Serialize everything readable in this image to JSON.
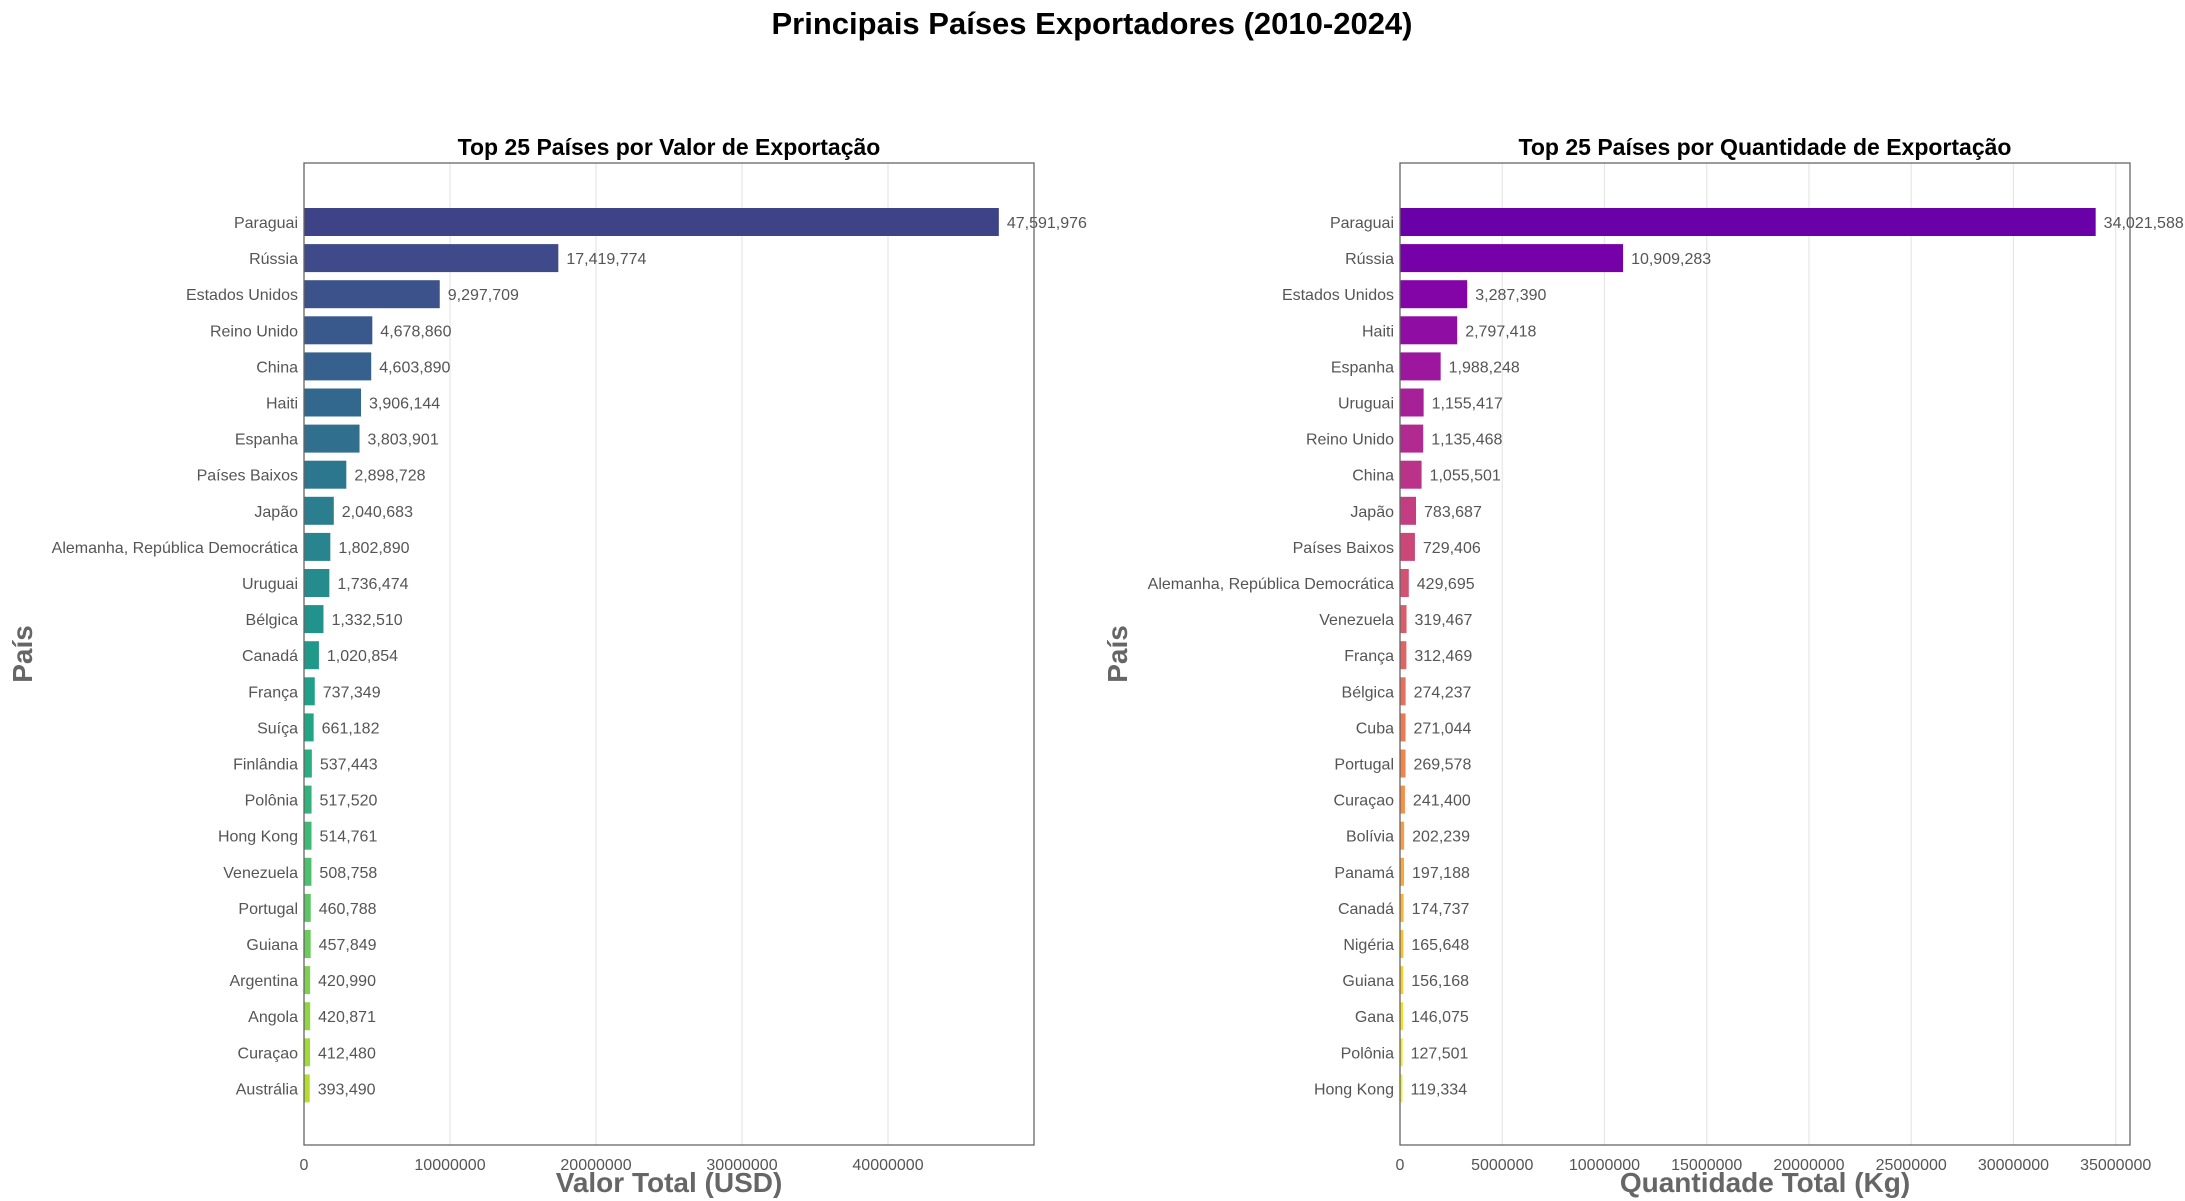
{
  "figure": {
    "title": "Principais Países Exportadores (2010-2024)"
  },
  "chart_data": [
    {
      "type": "bar",
      "orientation": "horizontal",
      "title": "Top 25 Países por Valor de Exportação",
      "xlabel": "Valor Total (USD)",
      "ylabel": "País",
      "xlim": [
        0,
        50000000
      ],
      "xticks": [
        0,
        10000000,
        20000000,
        30000000,
        40000000
      ],
      "xtick_labels": [
        "0",
        "10000000",
        "20000000",
        "30000000",
        "40000000"
      ],
      "grid": "vertical",
      "colormap": "viridis",
      "categories": [
        "Paraguai",
        "Rússia",
        "Estados Unidos",
        "Reino Unido",
        "China",
        "Haiti",
        "Espanha",
        "Países Baixos",
        "Japão",
        "Alemanha, República Democrática",
        "Uruguai",
        "Bélgica",
        "Canadá",
        "França",
        "Suíça",
        "Finlândia",
        "Polônia",
        "Hong Kong",
        "Venezuela",
        "Portugal",
        "Guiana",
        "Argentina",
        "Angola",
        "Curaçao",
        "Austrália"
      ],
      "values": [
        47591976,
        17419774,
        9297709,
        4678860,
        4603890,
        3906144,
        3803901,
        2898728,
        2040683,
        1802890,
        1736474,
        1332510,
        1020854,
        737349,
        661182,
        537443,
        517520,
        514761,
        508758,
        460788,
        457849,
        420990,
        420871,
        412480,
        393490
      ],
      "value_labels": [
        "47,591,976",
        "17,419,774",
        "9,297,709",
        "4,678,860",
        "4,603,890",
        "3,906,144",
        "3,803,901",
        "2,898,728",
        "2,040,683",
        "1,802,890",
        "1,736,474",
        "1,332,510",
        "1,020,854",
        "737,349",
        "661,182",
        "537,443",
        "517,520",
        "514,761",
        "508,758",
        "460,788",
        "457,849",
        "420,990",
        "420,871",
        "412,480",
        "393,490"
      ],
      "colors": [
        "#3e4286",
        "#3e4a89",
        "#3c528b",
        "#39598c",
        "#36618d",
        "#33688e",
        "#30708e",
        "#2d778e",
        "#2a7e8e",
        "#28848e",
        "#258b8d",
        "#22928c",
        "#21998a",
        "#1fa088",
        "#21a685",
        "#27ad80",
        "#31b37b",
        "#3dba75",
        "#4cc06d",
        "#5cc664",
        "#6ccb5a",
        "#7ed14f",
        "#90d643",
        "#a2da37",
        "#b5de2b"
      ]
    },
    {
      "type": "bar",
      "orientation": "horizontal",
      "title": "Top 25 Países por Quantidade de Exportação",
      "xlabel": "Quantidade Total (Kg)",
      "ylabel": "País",
      "xlim": [
        0,
        35700000
      ],
      "xticks": [
        0,
        5000000,
        10000000,
        15000000,
        20000000,
        25000000,
        30000000,
        35000000
      ],
      "xtick_labels": [
        "0",
        "5000000",
        "10000000",
        "15000000",
        "20000000",
        "25000000",
        "30000000",
        "35000000"
      ],
      "grid": "vertical",
      "colormap": "plasma",
      "categories": [
        "Paraguai",
        "Rússia",
        "Estados Unidos",
        "Haiti",
        "Espanha",
        "Uruguai",
        "Reino Unido",
        "China",
        "Japão",
        "Países Baixos",
        "Alemanha, República Democrática",
        "Venezuela",
        "França",
        "Bélgica",
        "Cuba",
        "Portugal",
        "Curaçao",
        "Bolívia",
        "Panamá",
        "Canadá",
        "Nigéria",
        "Guiana",
        "Gana",
        "Polônia",
        "Hong Kong"
      ],
      "values": [
        34021588,
        10909283,
        3287390,
        2797418,
        1988248,
        1155417,
        1135468,
        1055501,
        783687,
        729406,
        429695,
        319467,
        312469,
        274237,
        271044,
        269578,
        241400,
        202239,
        197188,
        174737,
        165648,
        156168,
        146075,
        127501,
        119334
      ],
      "value_labels": [
        "34,021,588",
        "10,909,283",
        "3,287,390",
        "2,797,418",
        "1,988,248",
        "1,155,417",
        "1,135,468",
        "1,055,501",
        "783,687",
        "729,406",
        "429,695",
        "319,467",
        "312,469",
        "274,237",
        "271,044",
        "269,578",
        "241,400",
        "202,239",
        "197,188",
        "174,737",
        "165,648",
        "156,168",
        "146,075",
        "127,501",
        "119,334"
      ],
      "colors": [
        "#6a00a8",
        "#7701a8",
        "#8405a7",
        "#900da4",
        "#9c179e",
        "#a62098",
        "#b12a90",
        "#ba3388",
        "#c33d80",
        "#cb4778",
        "#d35171",
        "#da5b69",
        "#e16462",
        "#e76f5a",
        "#ed7953",
        "#f2844b",
        "#f68f44",
        "#f99b3e",
        "#fca636",
        "#fdb42f",
        "#fec029",
        "#fcce25",
        "#f8dd24",
        "#f3ea26",
        "#eef227"
      ]
    }
  ]
}
